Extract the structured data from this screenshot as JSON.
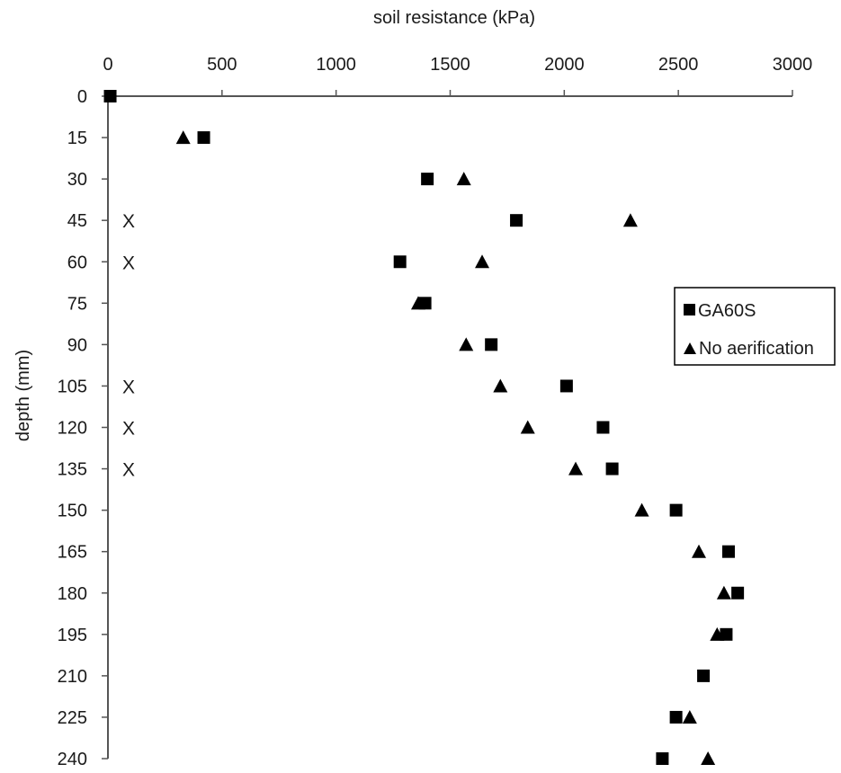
{
  "chart_data": {
    "type": "scatter",
    "x_axis": {
      "label": "soil resistance (kPa)",
      "range": [
        0,
        3000
      ],
      "ticks": [
        "0",
        "500",
        "1000",
        "1500",
        "2000",
        "2500",
        "3000"
      ],
      "position": "top"
    },
    "y_axis": {
      "label": "depth (mm)",
      "range": [
        0,
        240
      ],
      "inverted": true,
      "ticks": [
        "0",
        "15",
        "30",
        "45",
        "60",
        "75",
        "90",
        "105",
        "120",
        "135",
        "150",
        "165",
        "180",
        "195",
        "210",
        "225",
        "240"
      ]
    },
    "depths": [
      0,
      15,
      30,
      45,
      60,
      75,
      90,
      105,
      120,
      135,
      150,
      165,
      180,
      195,
      210,
      225,
      240
    ],
    "series": [
      {
        "name": "GA60S",
        "marker": "square",
        "values": [
          10,
          420,
          1400,
          1790,
          1280,
          1390,
          1680,
          2010,
          2170,
          2210,
          2490,
          2720,
          2760,
          2710,
          2610,
          2490,
          2430
        ]
      },
      {
        "name": "No aerification",
        "marker": "triangle",
        "values": [
          null,
          330,
          1560,
          2290,
          1640,
          1360,
          1570,
          1720,
          1840,
          2050,
          2340,
          2590,
          2700,
          2670,
          null,
          2550,
          2630
        ]
      }
    ],
    "significance": {
      "symbol": "X",
      "depths": [
        45,
        60,
        105,
        120,
        135
      ]
    },
    "legend": {
      "placement": "right",
      "entries": [
        "GA60S",
        "No aerification"
      ]
    },
    "grid": false,
    "colors": {
      "marker": "#000000",
      "axis": "#555555",
      "text": "#1a1a1a"
    }
  }
}
